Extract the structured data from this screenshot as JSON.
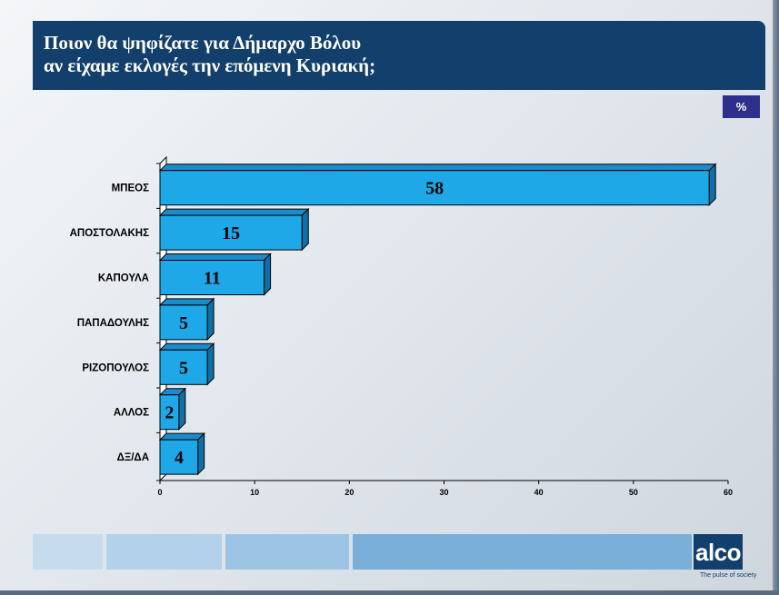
{
  "header": {
    "title_line1": "Ποιον θα ψηφίζατε για Δήμαρχο Βόλου",
    "title_line2": "αν είχαμε εκλογές την επόμενη Κυριακή;"
  },
  "unit_badge": "%",
  "chart_data": {
    "type": "bar",
    "orientation": "horizontal",
    "title": "Ποιον θα ψηφίζατε για Δήμαρχο Βόλου αν είχαμε εκλογές την επόμενη Κυριακή;",
    "categories": [
      "ΜΠΕΟΣ",
      "ΑΠΟΣΤΟΛΑΚΗΣ",
      "ΚΑΠΟΥΛΑ",
      "ΠΑΠΑΔΟΥΛΗΣ",
      "ΡΙΖΟΠΟΥΛΟΣ",
      "ΑΛΛΟΣ",
      "ΔΞ/ΔΑ"
    ],
    "values": [
      58,
      15,
      11,
      5,
      5,
      2,
      4
    ],
    "xlim": [
      0,
      60
    ],
    "xticks": [
      0,
      10,
      20,
      30,
      40,
      50,
      60
    ],
    "unit": "%",
    "grid": false,
    "colors": {
      "bar_front": "#1fa8e8",
      "bar_top": "#1a8ccc",
      "bar_side": "#0f6fa6"
    }
  },
  "footer": {
    "logo": "alco",
    "tagline": "The pulse of society",
    "band_colors": [
      "#c6dced",
      "#b3d1ea",
      "#9cc4e4",
      "#7aafda"
    ]
  }
}
